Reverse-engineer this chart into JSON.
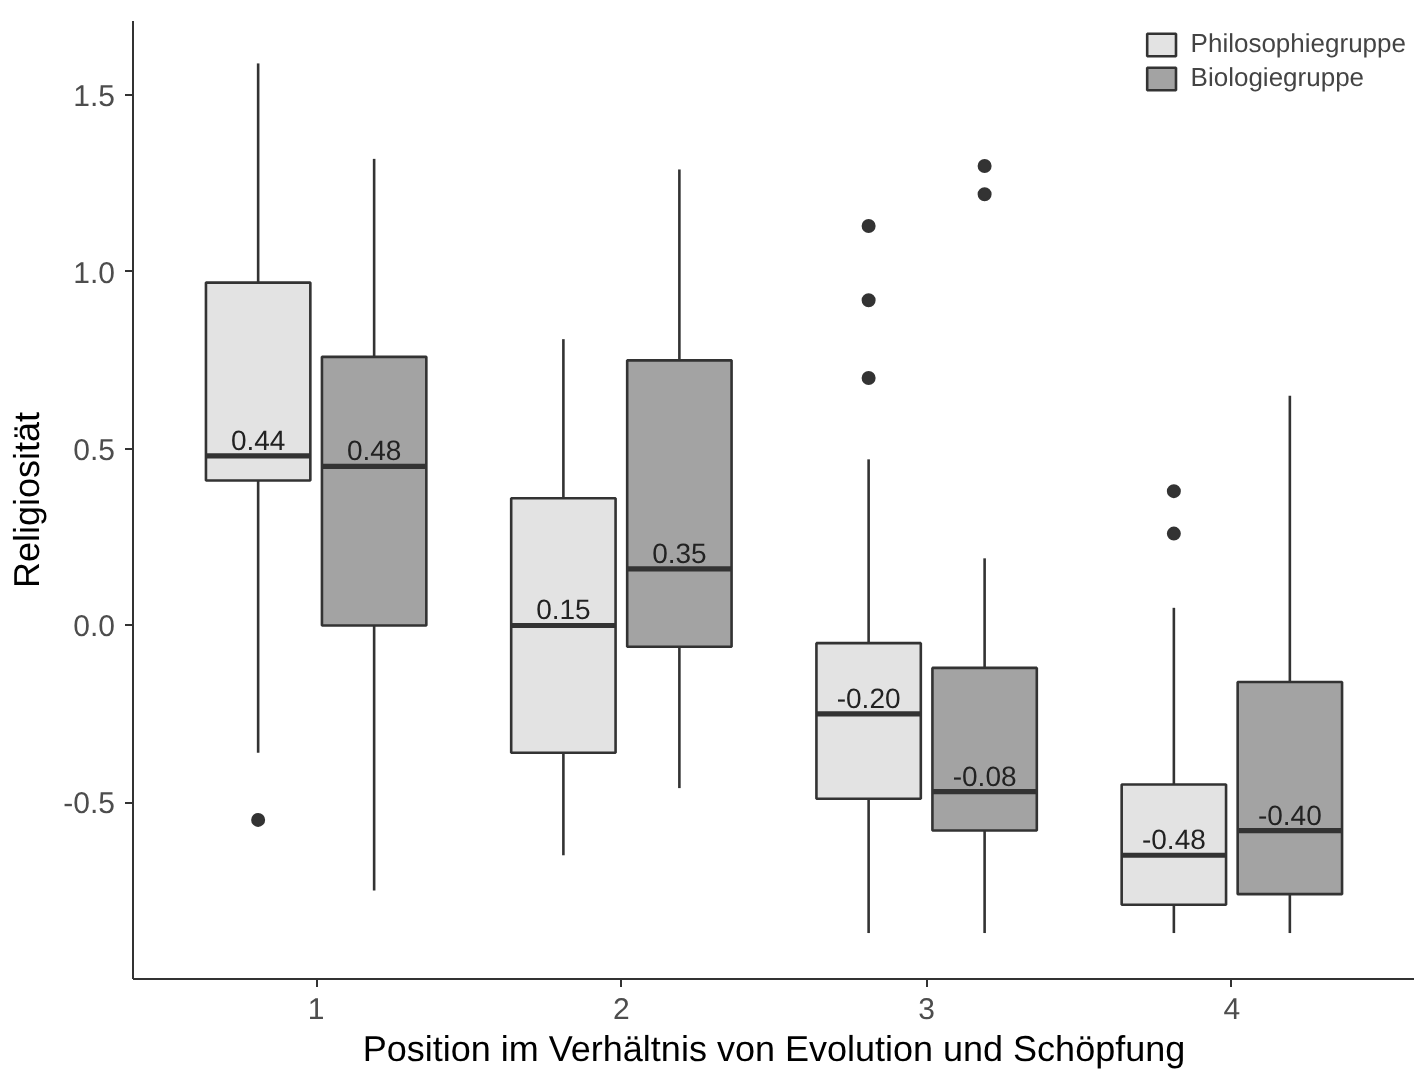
{
  "chart_data": {
    "type": "box",
    "xlabel": "Position im Verhältnis von Evolution und Schöpfung",
    "ylabel": "Religiosität",
    "categories": [
      "1",
      "2",
      "3",
      "4"
    ],
    "ylim": [
      -1.0,
      1.71
    ],
    "yticks": [
      {
        "value": -0.5,
        "label": "-0.5"
      },
      {
        "value": 0.0,
        "label": "0.0"
      },
      {
        "value": 0.5,
        "label": "0.5"
      },
      {
        "value": 1.0,
        "label": "1.0"
      },
      {
        "value": 1.5,
        "label": "1.5"
      }
    ],
    "grid": false,
    "legend": "top right",
    "series": [
      {
        "name": "Philosophiegruppe",
        "color": "#e3e3e3",
        "value_labels": [
          "0.44",
          "0.15",
          "-0.20",
          "-0.48"
        ],
        "boxes": [
          {
            "low": -0.36,
            "q1": 0.41,
            "median": 0.48,
            "q3": 0.97,
            "high": 1.59,
            "outliers": [
              -0.55
            ]
          },
          {
            "low": -0.65,
            "q1": -0.36,
            "median": 0.0,
            "q3": 0.36,
            "high": 0.81
          },
          {
            "low": -0.87,
            "q1": -0.49,
            "median": -0.25,
            "q3": -0.05,
            "high": 0.47,
            "outliers": [
              0.7,
              0.92,
              1.13
            ]
          },
          {
            "low": -0.87,
            "q1": -0.79,
            "median": -0.65,
            "q3": -0.45,
            "high": 0.05,
            "outliers": [
              0.26,
              0.38
            ]
          }
        ]
      },
      {
        "name": "Biologiegruppe",
        "color": "#a3a3a3",
        "value_labels": [
          "0.48",
          "0.35",
          "-0.08",
          "-0.40"
        ],
        "boxes": [
          {
            "low": -0.75,
            "q1": 0.0,
            "median": 0.45,
            "q3": 0.76,
            "high": 1.32
          },
          {
            "low": -0.46,
            "q1": -0.06,
            "median": 0.16,
            "q3": 0.75,
            "high": 1.29
          },
          {
            "low": -0.87,
            "q1": -0.58,
            "median": -0.47,
            "q3": -0.12,
            "high": 0.19,
            "outliers": [
              1.22,
              1.3
            ]
          },
          {
            "low": -0.87,
            "q1": -0.76,
            "median": -0.58,
            "q3": -0.16,
            "high": 0.65
          }
        ]
      }
    ]
  }
}
